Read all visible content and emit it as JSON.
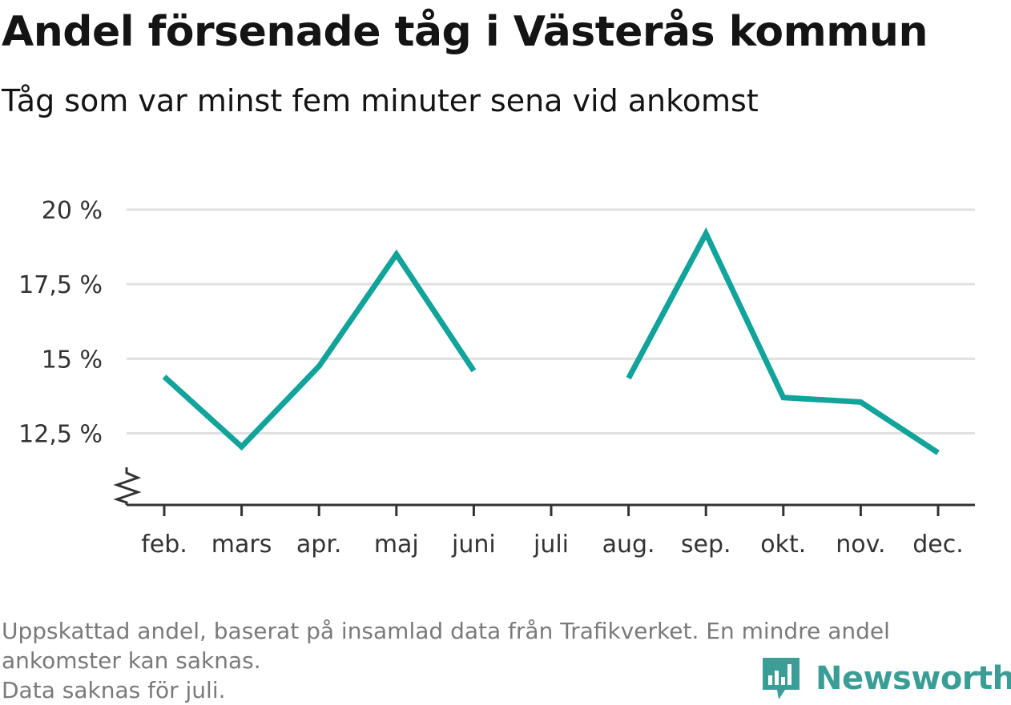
{
  "header": {
    "title": "Andel försenade tåg i Västerås kommun",
    "subtitle": "Tåg som var minst fem minuter sena vid ankomst"
  },
  "footer": {
    "note_line1": "Uppskattad andel, baserat på insamlad data från Trafikverket. En mindre andel ankomster kan saknas.",
    "note_line2": "Data saknas för juli.",
    "brand": "Newsworthy",
    "brand_icon": "bar-chart-speech-bubble-icon"
  },
  "colors": {
    "line": "#12a39b",
    "grid": "#e0e0e0",
    "axis": "#333333",
    "brand": "#3a9e97"
  },
  "chart_data": {
    "type": "line",
    "title": "Andel försenade tåg i Västerås kommun",
    "subtitle": "Tåg som var minst fem minuter sena vid ankomst",
    "categories": [
      "feb.",
      "mars",
      "apr.",
      "maj",
      "juni",
      "juli",
      "aug.",
      "sep.",
      "okt.",
      "nov.",
      "dec."
    ],
    "series": [
      {
        "values": [
          14.4,
          12.05,
          14.75,
          18.5,
          14.6,
          null,
          14.35,
          19.2,
          13.7,
          13.55,
          11.85
        ]
      }
    ],
    "y_ticks": [
      12.5,
      15,
      17.5,
      20
    ],
    "y_tick_labels": [
      "12,5 %",
      "15 %",
      "17,5 %",
      "20 %"
    ],
    "ylim": [
      10.1,
      20
    ],
    "axis_break": true,
    "grid": true
  }
}
